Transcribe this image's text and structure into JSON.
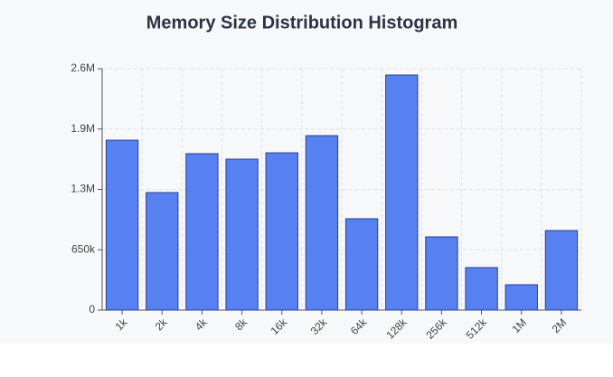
{
  "chart_data": {
    "type": "bar",
    "title": "Memory Size Distribution Histogram",
    "categories": [
      "1k",
      "2k",
      "4k",
      "8k",
      "16k",
      "32k",
      "64k",
      "128k",
      "256k",
      "512k",
      "1M",
      "2M"
    ],
    "values": [
      1830000,
      1266000,
      1685000,
      1626000,
      1694000,
      1879000,
      984000,
      2532000,
      789000,
      458000,
      273000,
      857000
    ],
    "color": "#5780f0",
    "border_color": "#2f3f8f",
    "ylim": [
      0,
      2600000
    ],
    "yticks": [
      0,
      {
        "value": 650000,
        "label": "650k"
      },
      {
        "value": 1300000,
        "label": "1.3M"
      },
      {
        "value": 1950000,
        "label": "1.9M"
      },
      {
        "value": 2600000,
        "label": "2.6M"
      }
    ],
    "grid": true
  }
}
